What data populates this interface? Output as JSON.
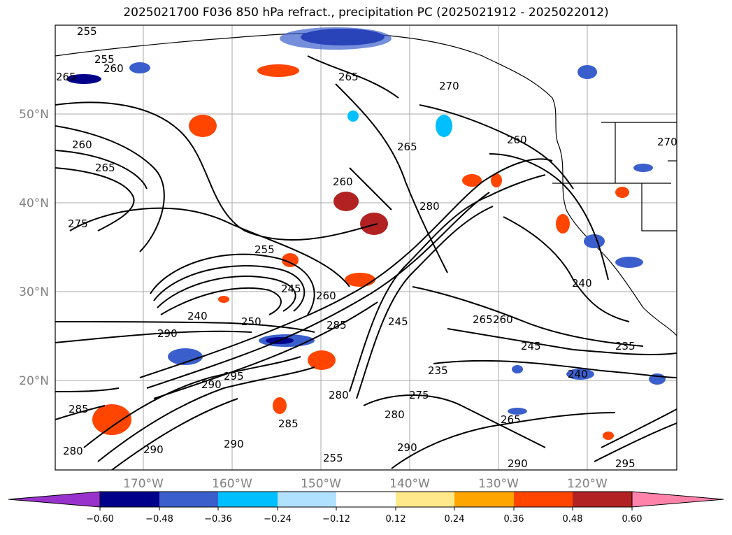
{
  "title": "2025021700 F036 850 hPa refract., precipitation PC (2025021912 - 2025022012)",
  "map": {
    "lat_labels": [
      "50°N",
      "40°N",
      "30°N",
      "20°N"
    ],
    "lon_labels": [
      "170°W",
      "160°W",
      "150°W",
      "140°W",
      "130°W",
      "120°W"
    ],
    "contour_labels": [
      "255",
      "255",
      "260",
      "265",
      "265",
      "270",
      "260",
      "265",
      "260",
      "265",
      "280",
      "275",
      "255",
      "245",
      "260",
      "240",
      "250",
      "290",
      "245",
      "265",
      "260",
      "245",
      "235",
      "240",
      "240",
      "285",
      "290",
      "295",
      "280",
      "285",
      "290",
      "280",
      "285",
      "290",
      "255",
      "280",
      "275",
      "235",
      "265",
      "290",
      "295",
      "290",
      "270",
      "260"
    ]
  },
  "colorbar": {
    "ticks": [
      "−0.60",
      "−0.48",
      "−0.36",
      "−0.24",
      "−0.12",
      "0.12",
      "0.24",
      "0.36",
      "0.48",
      "0.60"
    ],
    "colors": [
      "#9932cc",
      "#00008b",
      "#3a5fcd",
      "#00bfff",
      "#b0e2ff",
      "#ffffff",
      "#ffe98a",
      "#ffa500",
      "#ff4500",
      "#b22222",
      "#ff82ab"
    ]
  }
}
